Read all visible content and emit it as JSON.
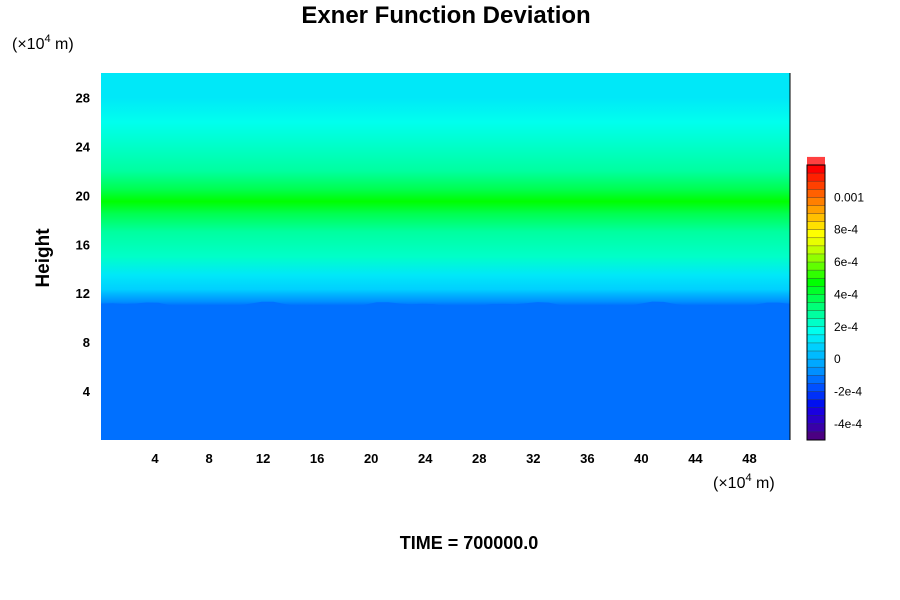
{
  "chart_data": {
    "type": "heatmap",
    "title": "Exner Function Deviation",
    "ylabel": "Height",
    "xlabel": "",
    "x_unit": {
      "prefix": "(×10",
      "exp": "4",
      "suffix": " m)"
    },
    "y_unit": {
      "prefix": "(×10",
      "exp": "4",
      "suffix": " m)"
    },
    "xlim": [
      0,
      51
    ],
    "ylim": [
      0,
      30
    ],
    "xticks": [
      4,
      8,
      12,
      16,
      20,
      24,
      28,
      32,
      36,
      40,
      44,
      48
    ],
    "yticks": [
      4,
      8,
      12,
      16,
      20,
      24,
      28
    ],
    "time_text": "TIME = 700000.0",
    "field_profile": {
      "height": [
        0,
        11,
        11.3,
        12.0,
        12.3,
        13.5,
        15,
        17,
        18.5,
        19.5,
        20.5,
        22,
        24,
        26,
        28,
        30
      ],
      "value": [
        -0.00015,
        -0.00015,
        -6e-05,
        1e-05,
        6e-05,
        0.00014,
        0.00021,
        0.00029,
        0.00037,
        0.00048,
        0.00037,
        0.00029,
        0.00021,
        0.00016,
        0.00011,
        0.0001
      ]
    },
    "colorbar": {
      "min": -0.0005,
      "max": 0.0012,
      "step": 5e-05,
      "tick_values": [
        -0.0004,
        -0.0002,
        0,
        0.0002,
        0.0004,
        0.0006,
        0.0008,
        0.001
      ],
      "tick_labels": [
        "-4e-4",
        "-2e-4",
        "0",
        "2e-4",
        "4e-4",
        "6e-4",
        "8e-4",
        "0.001"
      ],
      "colors": [
        "#4b0082",
        "#3a00a8",
        "#2a00c8",
        "#1a00e0",
        "#0010f0",
        "#0030f8",
        "#0050ff",
        "#0070ff",
        "#0090ff",
        "#00a8ff",
        "#00bbff",
        "#00d0ff",
        "#00e8f8",
        "#00ffee",
        "#00ffc8",
        "#00ffa0",
        "#00ff78",
        "#00ff50",
        "#00ff28",
        "#00ff00",
        "#30ff00",
        "#60ff00",
        "#90ff00",
        "#c0ff00",
        "#e8ff00",
        "#ffff00",
        "#ffe000",
        "#ffc000",
        "#ffa000",
        "#ff8000",
        "#ff6000",
        "#ff4000",
        "#ff2000",
        "#ff0000",
        "#ff4040"
      ]
    }
  }
}
